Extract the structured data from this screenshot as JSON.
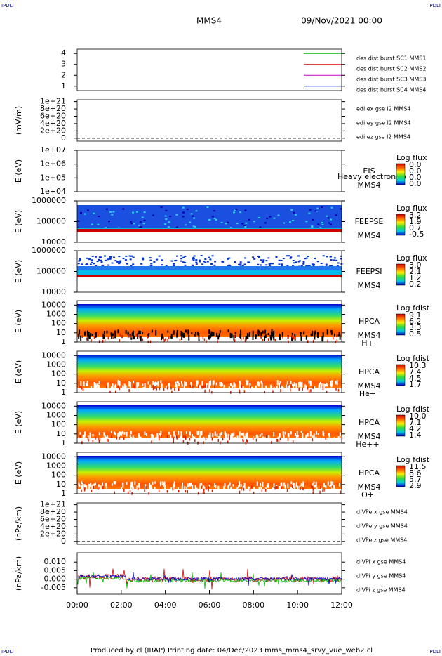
{
  "header": {
    "corner_labels": [
      "IPDLI",
      "IPDLI",
      "IPDLI",
      "IPDLI"
    ],
    "title": "MMS4",
    "date": "09/Nov/2021 00:00"
  },
  "footer": "Produced by cl (IRAP)   Printing date: 04/Dec/2023   mms_mms4_srvy_vue_web2.cl",
  "chart_data": [
    {
      "type": "line",
      "ylim": [
        0.6,
        4.4
      ],
      "yticks": [
        1,
        2,
        3,
        4
      ],
      "series": [
        {
          "name": "des dist burst SC1 MMS1",
          "color": "#0000cc"
        },
        {
          "name": "des dist burst SC2 MMS2",
          "color": "#cc00cc"
        },
        {
          "name": "des dist burst SC3 MMS3",
          "color": "#dd0000"
        },
        {
          "name": "des dist burst SC4 MMS4",
          "color": "#00bb00"
        }
      ]
    },
    {
      "type": "line",
      "ylabel": "(mV/m)",
      "ylim": [
        -8e+19,
        1.05e+21
      ],
      "yticks": [
        0,
        {
          "value": 2e+20,
          "label": "2e+20"
        },
        {
          "value": 4e+20,
          "label": "4e+20"
        },
        {
          "value": 6e+20,
          "label": "6e+20"
        },
        {
          "value": 8e+20,
          "label": "8e+20"
        },
        {
          "value": 1e+21,
          "label": "1e+21"
        }
      ],
      "series": [
        {
          "name": "edi ex gse l2 MMS4",
          "color": "#dd0000"
        },
        {
          "name": "edi ey gse l2 MMS4",
          "color": "#00bb00"
        },
        {
          "name": "edi ez gse l2 MMS4",
          "color": "#0000cc"
        }
      ]
    },
    {
      "type": "spectrogram",
      "ylabel": "E (eV)",
      "log": true,
      "ylim": [
        10000,
        10000000
      ],
      "yticks": [
        {
          "value": 10000,
          "label": "1e+04"
        },
        {
          "value": 100000,
          "label": "1e+05"
        },
        {
          "value": 1000000,
          "label": "1e+06"
        },
        {
          "value": 10000000,
          "label": "1e+07"
        }
      ],
      "instrument": "EIS",
      "spacecraft": "MMS4",
      "note": "Heavy electron to",
      "colorbar_title": "Log flux",
      "colorbar_ticks": [
        "0.0",
        "0.0",
        "0.0",
        "0.0"
      ]
    },
    {
      "type": "spectrogram",
      "ylabel": "E (eV)",
      "log": true,
      "ylim": [
        10000,
        1000000
      ],
      "yticks": [
        10000,
        100000,
        1000000
      ],
      "instrument": "FEEPSE",
      "spacecraft": "MMS4",
      "colorbar_title": "Log flux",
      "colorbar_ticks": [
        "3.2",
        "1.9",
        "0.7",
        "-0.5"
      ]
    },
    {
      "type": "spectrogram",
      "ylabel": "E (eV)",
      "log": true,
      "ylim": [
        10000,
        1000000
      ],
      "yticks": [
        10000,
        100000,
        1000000
      ],
      "instrument": "FEEPSI",
      "spacecraft": "MMS4",
      "colorbar_title": "Log flux",
      "colorbar_ticks": [
        "3.0",
        "2.1",
        "1.2",
        "0.2"
      ]
    },
    {
      "type": "spectrogram",
      "ylabel": "E (eV)",
      "log": true,
      "ylim": [
        1,
        30000
      ],
      "yticks": [
        1,
        10,
        100,
        1000,
        10000
      ],
      "instrument": "HPCA",
      "spacecraft": "MMS4",
      "species": "H+",
      "colorbar_title": "Log fdist",
      "colorbar_ticks": [
        "9.1",
        "6.2",
        "3.3",
        "0.5"
      ]
    },
    {
      "type": "spectrogram",
      "ylabel": "E (eV)",
      "log": true,
      "ylim": [
        1,
        30000
      ],
      "yticks": [
        1,
        10,
        100,
        1000,
        10000
      ],
      "instrument": "HPCA",
      "spacecraft": "MMS4",
      "species": "He+",
      "colorbar_title": "Log fdist",
      "colorbar_ticks": [
        "10.3",
        "7.4",
        "4.5",
        "1.7"
      ]
    },
    {
      "type": "spectrogram",
      "ylabel": "E (eV)",
      "log": true,
      "ylim": [
        1,
        30000
      ],
      "yticks": [
        1,
        10,
        100,
        1000,
        10000
      ],
      "instrument": "HPCA",
      "spacecraft": "MMS4",
      "species": "He++",
      "colorbar_title": "Log fdist",
      "colorbar_ticks": [
        "10.0",
        "7.1",
        "4.2",
        "1.4"
      ]
    },
    {
      "type": "spectrogram",
      "ylabel": "E (eV)",
      "log": true,
      "ylim": [
        1,
        30000
      ],
      "yticks": [
        1,
        10,
        100,
        1000,
        10000
      ],
      "instrument": "HPCA",
      "spacecraft": "MMS4",
      "species": "O+",
      "colorbar_title": "Log fdist",
      "colorbar_ticks": [
        "11.5",
        "8.6",
        "5.7",
        "2.9"
      ]
    },
    {
      "type": "line",
      "ylabel": "(nPa/km)",
      "ylim": [
        -8e+19,
        1.05e+21
      ],
      "yticks": [
        0,
        {
          "value": 2e+20,
          "label": "2e+20"
        },
        {
          "value": 4e+20,
          "label": "4e+20"
        },
        {
          "value": 6e+20,
          "label": "6e+20"
        },
        {
          "value": 8e+20,
          "label": "8e+20"
        },
        {
          "value": 1e+21,
          "label": "1e+21"
        }
      ],
      "series": [
        {
          "name": "dIVPe x gse MMS4",
          "color": "#dd0000"
        },
        {
          "name": "dIVPe y gse MMS4",
          "color": "#00bb00"
        },
        {
          "name": "dIVPe z gse MMS4",
          "color": "#0000cc"
        }
      ]
    },
    {
      "type": "timeseries",
      "ylabel": "(nPa/km)",
      "ylim": [
        -0.00875,
        0.0154
      ],
      "yticks": [
        {
          "value": -0.005,
          "label": "-0.005"
        },
        {
          "value": 0,
          "label": "0.000"
        },
        {
          "value": 0.005,
          "label": "0.005"
        },
        {
          "value": 0.01,
          "label": "0.010"
        }
      ],
      "series": [
        {
          "name": "dIVPi x gse MMS4",
          "color": "#dd0000"
        },
        {
          "name": "dIVPi y gse MMS4",
          "color": "#00bb00"
        },
        {
          "name": "dIVPi z gse MMS4",
          "color": "#0000cc"
        }
      ]
    }
  ],
  "xticks": [
    "00:00",
    "02:00",
    "04:00",
    "06:00",
    "08:00",
    "10:00",
    "12:00"
  ]
}
